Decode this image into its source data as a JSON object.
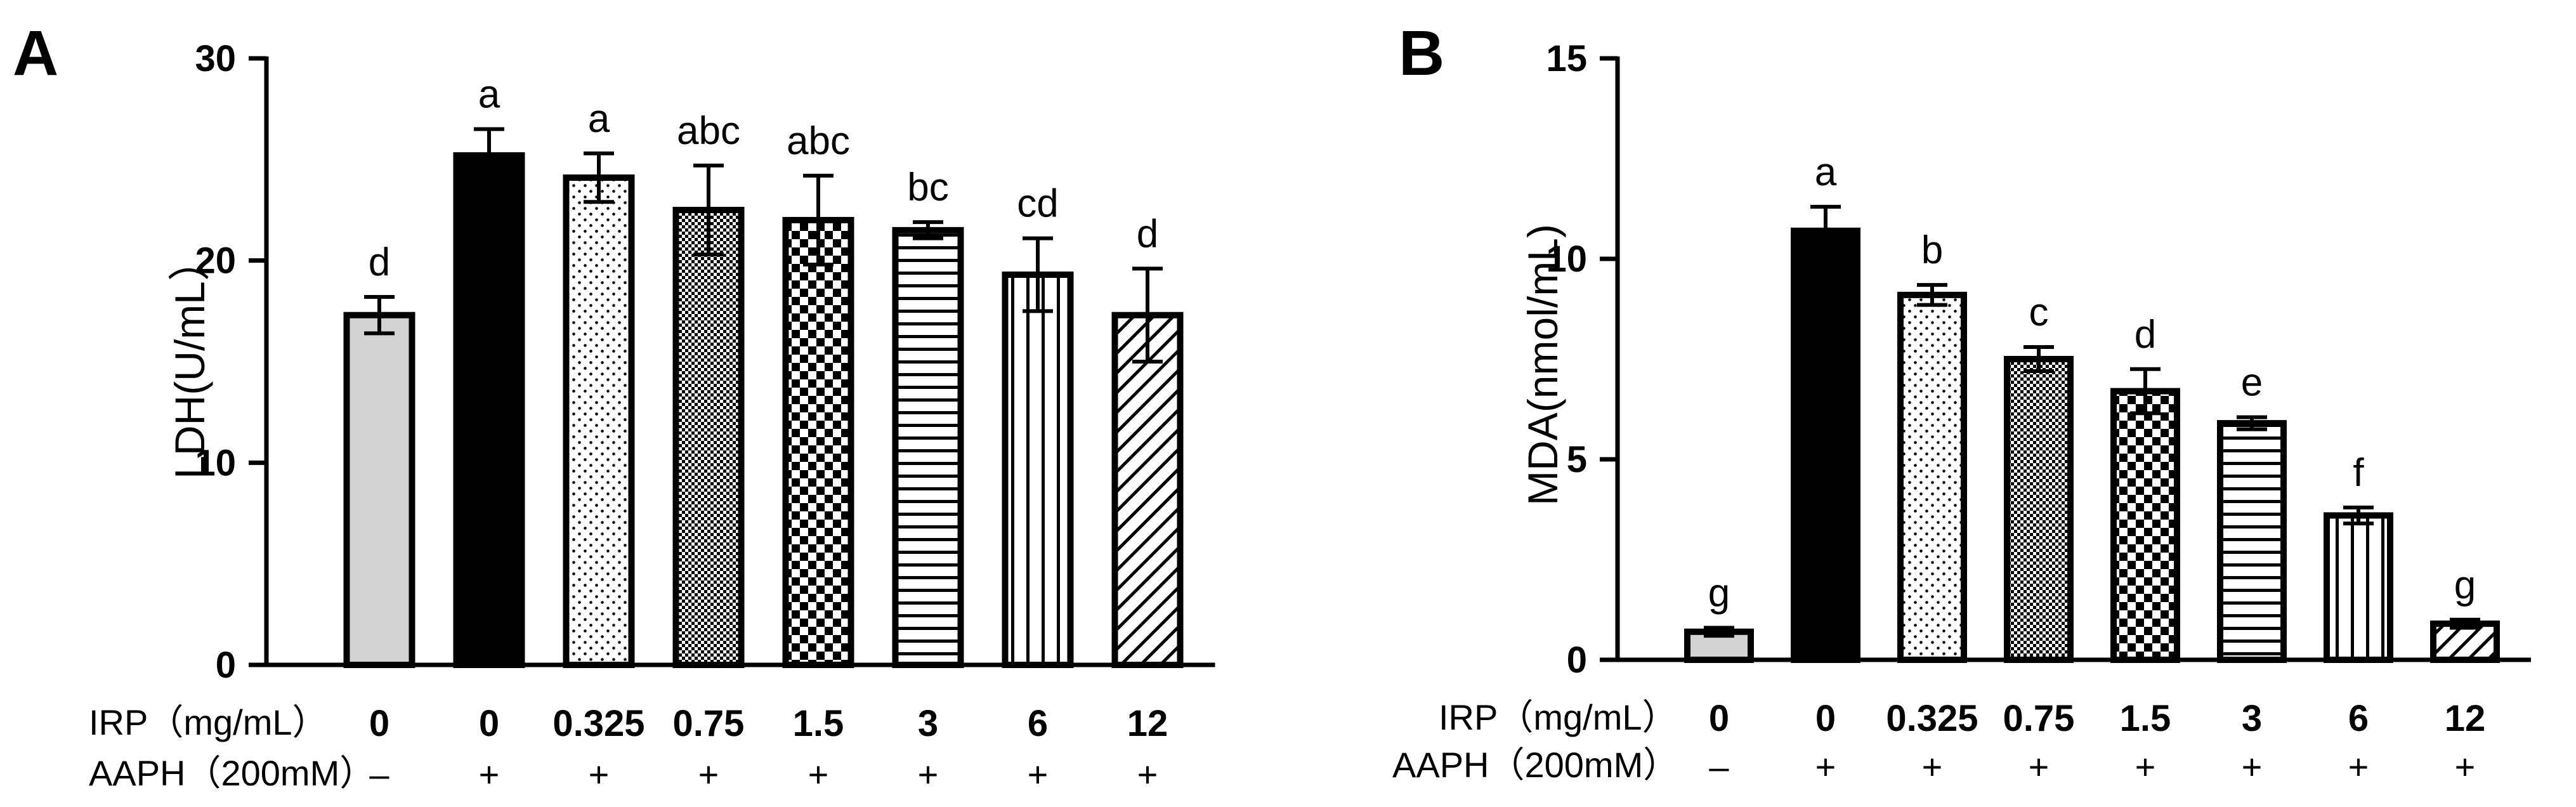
{
  "chart_data": [
    {
      "panel": "A",
      "type": "bar",
      "ylabel": "LDH(U/mL）",
      "xlabel": "",
      "ylim": [
        0,
        30
      ],
      "yticks": [
        "0",
        "10",
        "20",
        "30"
      ],
      "categories": [
        "0",
        "0",
        "0.325",
        "0.75",
        "1.5",
        "3",
        "6",
        "12"
      ],
      "row_labels": [
        "IRP（mg/mL）",
        "AAPH（200mM）"
      ],
      "aaph": [
        "–",
        "+",
        "+",
        "+",
        "+",
        "+",
        "+",
        "+"
      ],
      "values": [
        17.3,
        25.2,
        24.1,
        22.5,
        22.0,
        21.5,
        19.3,
        17.3
      ],
      "errors": [
        0.9,
        1.3,
        1.2,
        2.2,
        2.2,
        0.4,
        1.8,
        2.3
      ],
      "sig_letters": [
        "d",
        "a",
        "a",
        "abc",
        "abc",
        "bc",
        "cd",
        "d"
      ],
      "patterns": [
        "solid-gray",
        "solid-black",
        "dots-sparse",
        "dots-dense",
        "checker",
        "horizontal-lines",
        "vertical-lines",
        "diagonal-lines"
      ]
    },
    {
      "panel": "B",
      "type": "bar",
      "ylabel": "MDA(nmol/mL)",
      "xlabel": "",
      "ylim": [
        0,
        15
      ],
      "yticks": [
        "0",
        "5",
        "10",
        "15"
      ],
      "categories": [
        "0",
        "0",
        "0.325",
        "0.75",
        "1.5",
        "3",
        "6",
        "12"
      ],
      "row_labels": [
        "IRP（mg/mL）",
        "AAPH（200mM）"
      ],
      "aaph": [
        "–",
        "+",
        "+",
        "+",
        "+",
        "+",
        "+",
        "+"
      ],
      "values": [
        0.7,
        10.7,
        9.1,
        7.5,
        6.7,
        5.9,
        3.6,
        0.9
      ],
      "errors": [
        0.1,
        0.6,
        0.25,
        0.3,
        0.55,
        0.15,
        0.2,
        0.1
      ],
      "sig_letters": [
        "g",
        "a",
        "b",
        "c",
        "d",
        "e",
        "f",
        "g"
      ],
      "patterns": [
        "solid-gray",
        "solid-black",
        "dots-sparse",
        "dots-dense",
        "checker",
        "horizontal-lines",
        "vertical-lines",
        "diagonal-lines"
      ]
    }
  ],
  "colors": {
    "ink": "#000000",
    "control_fill": "#d3d3d3",
    "background": "#ffffff"
  }
}
